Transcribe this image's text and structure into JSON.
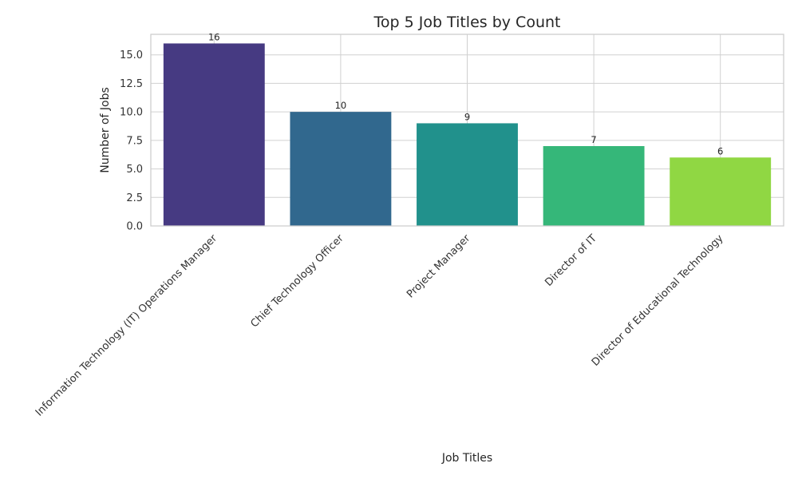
{
  "chart_data": {
    "type": "bar",
    "title": "Top 5 Job Titles by Count",
    "xlabel": "Job Titles",
    "ylabel": "Number of Jobs",
    "categories": [
      "Information Technology (IT) Operations Manager",
      "Chief Technology Officer",
      "Project Manager",
      "Director of IT",
      "Director of Educational Technology"
    ],
    "values": [
      16,
      10,
      9,
      7,
      6
    ],
    "data_labels": [
      "16",
      "10",
      "9",
      "7",
      "6"
    ],
    "colors": [
      "#463a82",
      "#31688e",
      "#21918c",
      "#35b779",
      "#90d743"
    ],
    "ylim": [
      0,
      16.8
    ],
    "yticks": [
      0.0,
      2.5,
      5.0,
      7.5,
      10.0,
      12.5,
      15.0
    ],
    "ytick_labels": [
      "0.0",
      "2.5",
      "5.0",
      "7.5",
      "10.0",
      "12.5",
      "15.0"
    ],
    "grid": true,
    "legend": "none"
  }
}
